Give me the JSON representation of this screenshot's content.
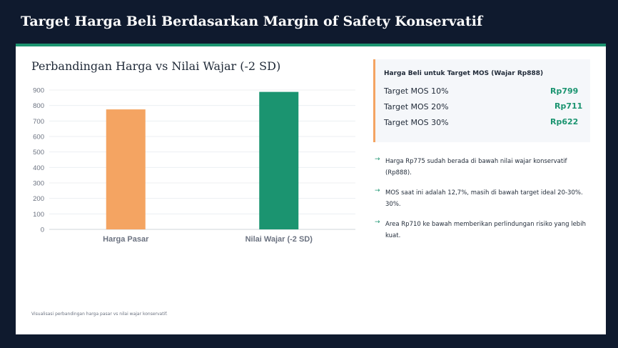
{
  "header": {
    "title": "Target Harga Beli Berdasarkan Margin of Safety Konservatif"
  },
  "colors": {
    "accent_green": "#1b9470",
    "accent_orange": "#f4a462",
    "header_bg": "#0f1a2e"
  },
  "chart_data": {
    "type": "bar",
    "title": "Perbandingan Harga vs Nilai Wajar (-2 SD)",
    "categories": [
      "Harga Pasar",
      "Nilai Wajar (-2 SD)"
    ],
    "values": [
      775,
      888
    ],
    "bar_colors": [
      "#f4a462",
      "#1b9470"
    ],
    "ylim": [
      0,
      900
    ],
    "yticks": [
      "0",
      "100",
      "200",
      "300",
      "400",
      "500",
      "600",
      "700",
      "800",
      "900"
    ],
    "xlabel": "",
    "ylabel": "",
    "grid": true
  },
  "footnote": "Visualisasi perbandingan harga pasar vs nilai wajar konservatif.",
  "panel": {
    "title": "Harga Beli untuk Target MOS (Wajar Rp888)",
    "rows": [
      {
        "label": "Target MOS 10%",
        "value": "Rp799"
      },
      {
        "label": "Target MOS 20%",
        "value": "Rp711"
      },
      {
        "label": "Target MOS 30%",
        "value": "Rp622"
      }
    ]
  },
  "bullets": [
    {
      "icon": "arrow-right-icon",
      "text": "Harga Rp775 sudah berada di bawah nilai wajar konservatif (Rp888)."
    },
    {
      "icon": "arrow-right-icon",
      "text": "MOS saat ini adalah 12,7%, masih di bawah target ideal 20-30%. 30%."
    },
    {
      "icon": "arrow-right-icon",
      "text": "Area Rp710 ke bawah memberikan perlindungan risiko yang lebih kuat."
    }
  ]
}
